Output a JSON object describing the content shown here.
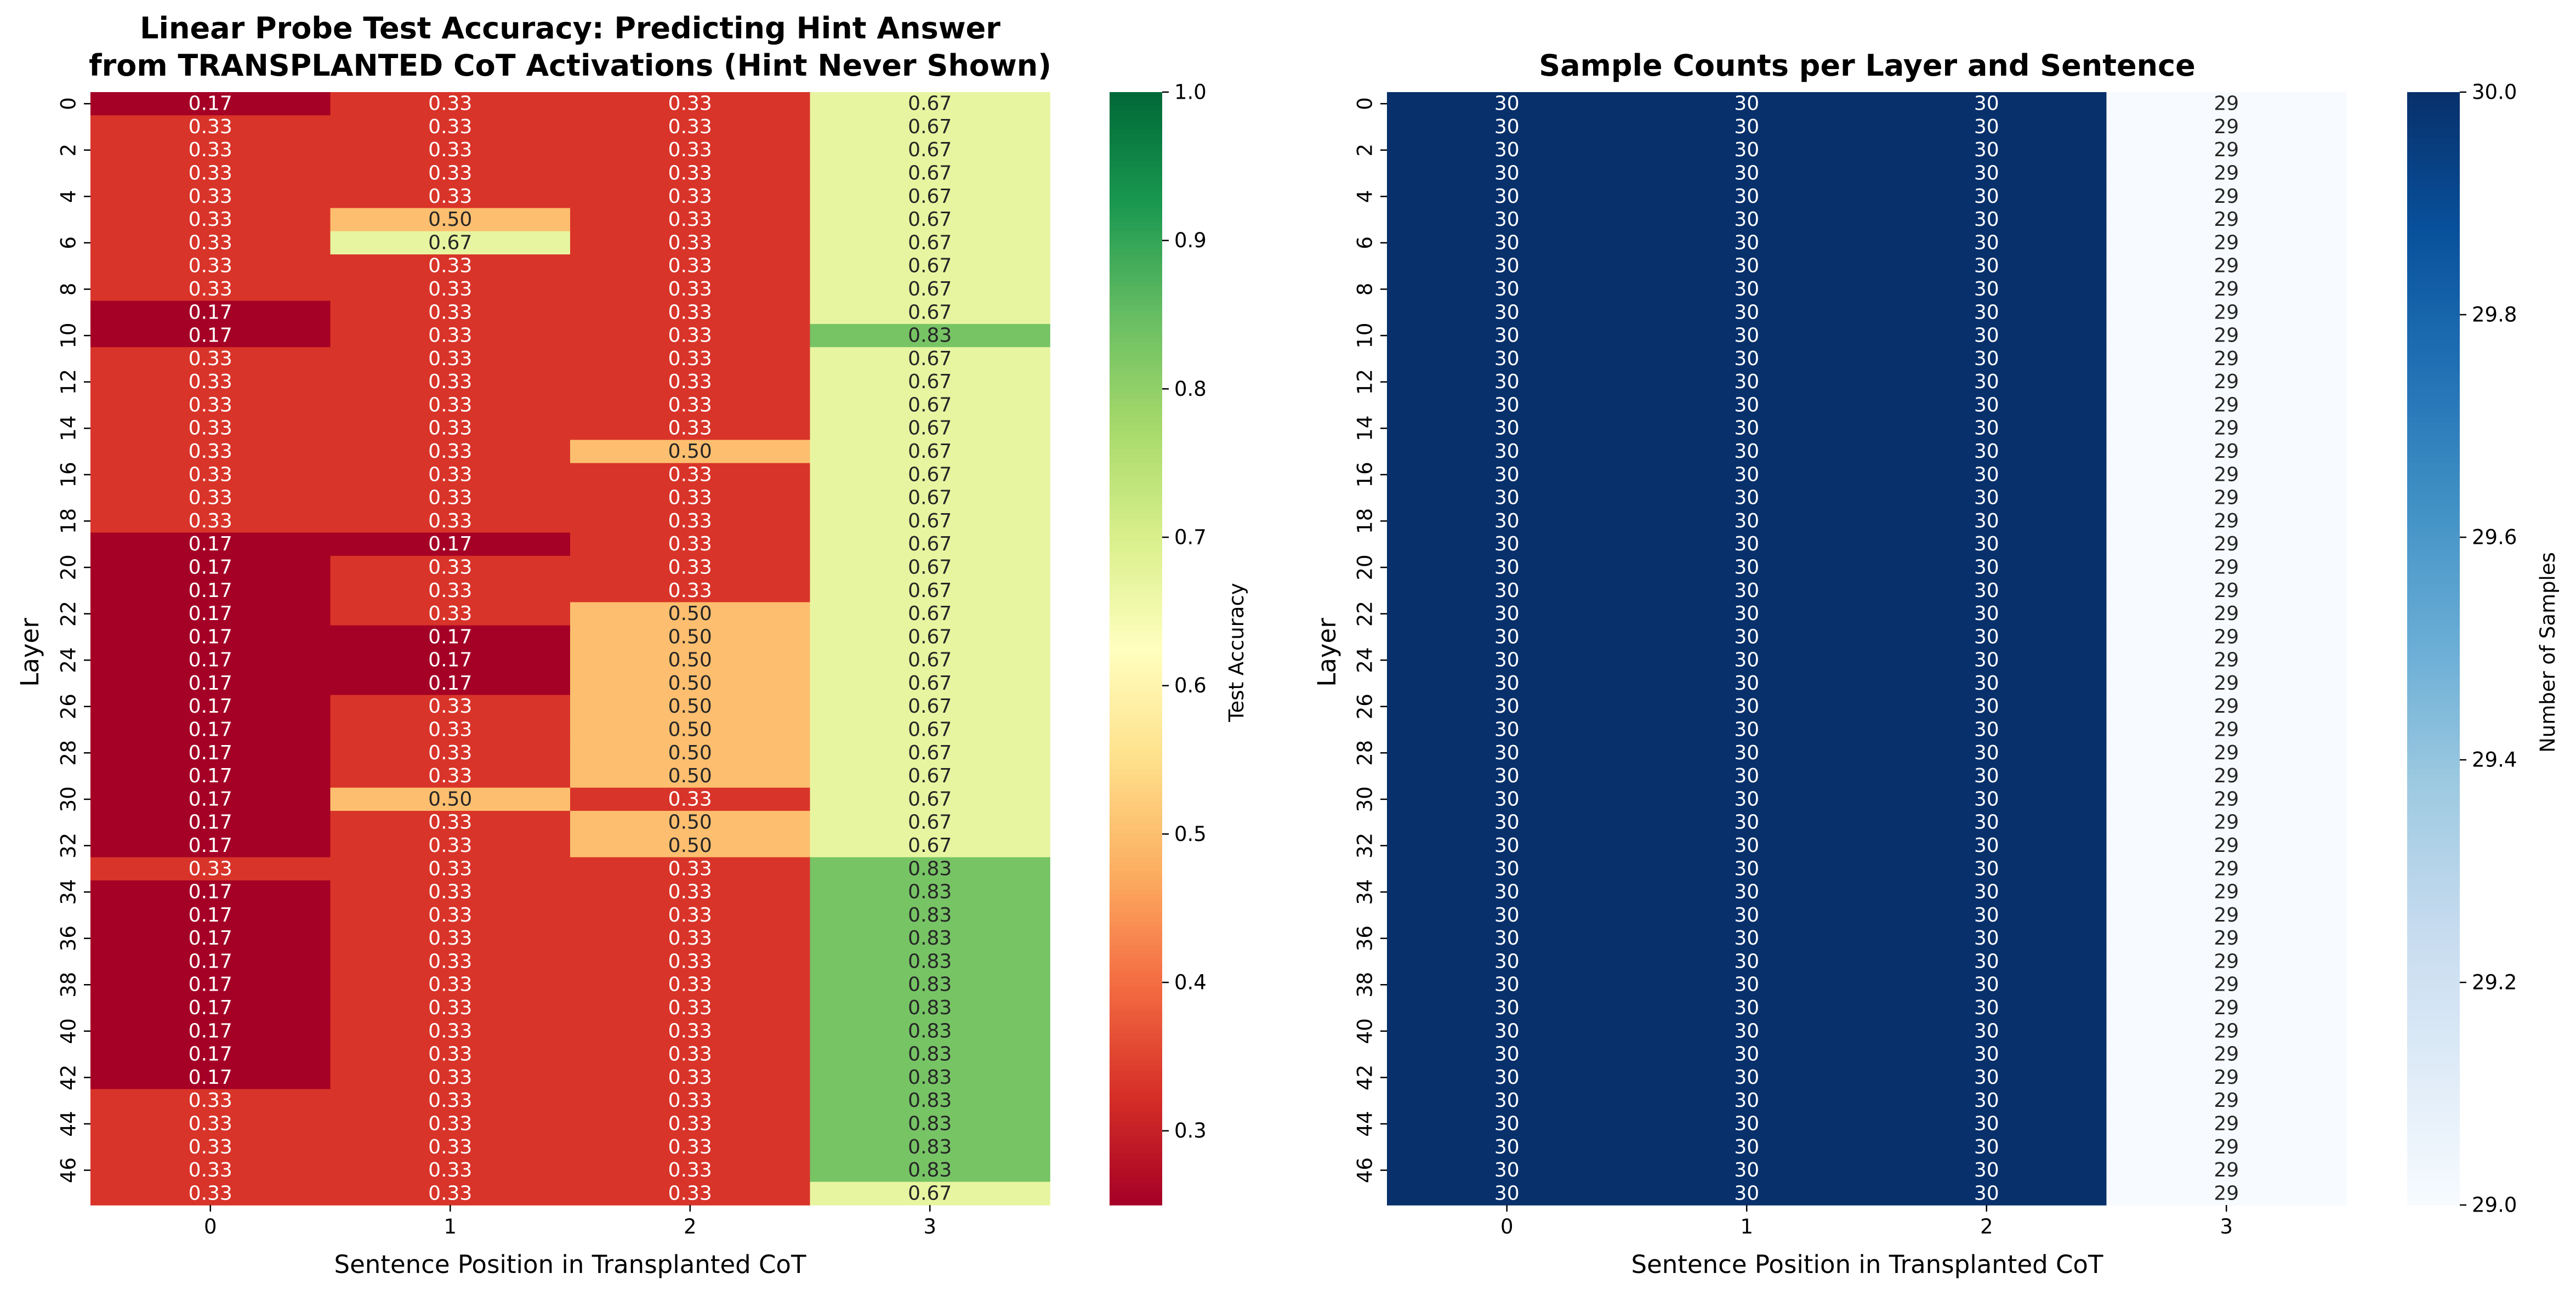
{
  "chart_data": [
    {
      "type": "heatmap",
      "title_lines": [
        "Linear Probe Test Accuracy: Predicting Hint Answer",
        "from TRANSPLANTED CoT Activations (Hint Never Shown)"
      ],
      "xlabel": "Sentence Position in Transplanted CoT",
      "ylabel": "Layer",
      "x_categories": [
        "0",
        "1",
        "2",
        "3"
      ],
      "y_categories": [
        "0",
        "1",
        "2",
        "3",
        "4",
        "5",
        "6",
        "7",
        "8",
        "9",
        "10",
        "11",
        "12",
        "13",
        "14",
        "15",
        "16",
        "17",
        "18",
        "19",
        "20",
        "21",
        "22",
        "23",
        "24",
        "25",
        "26",
        "27",
        "28",
        "29",
        "30",
        "31",
        "32",
        "33",
        "34",
        "35",
        "36",
        "37",
        "38",
        "39",
        "40",
        "41",
        "42",
        "43",
        "44",
        "45",
        "46",
        "47"
      ],
      "y_tick_labels": [
        "0",
        "2",
        "4",
        "6",
        "8",
        "10",
        "12",
        "14",
        "16",
        "18",
        "20",
        "22",
        "24",
        "26",
        "28",
        "30",
        "32",
        "34",
        "36",
        "38",
        "40",
        "42",
        "44",
        "46"
      ],
      "values": [
        [
          0.17,
          0.33,
          0.33,
          0.67
        ],
        [
          0.33,
          0.33,
          0.33,
          0.67
        ],
        [
          0.33,
          0.33,
          0.33,
          0.67
        ],
        [
          0.33,
          0.33,
          0.33,
          0.67
        ],
        [
          0.33,
          0.33,
          0.33,
          0.67
        ],
        [
          0.33,
          0.5,
          0.33,
          0.67
        ],
        [
          0.33,
          0.67,
          0.33,
          0.67
        ],
        [
          0.33,
          0.33,
          0.33,
          0.67
        ],
        [
          0.33,
          0.33,
          0.33,
          0.67
        ],
        [
          0.17,
          0.33,
          0.33,
          0.67
        ],
        [
          0.17,
          0.33,
          0.33,
          0.83
        ],
        [
          0.33,
          0.33,
          0.33,
          0.67
        ],
        [
          0.33,
          0.33,
          0.33,
          0.67
        ],
        [
          0.33,
          0.33,
          0.33,
          0.67
        ],
        [
          0.33,
          0.33,
          0.33,
          0.67
        ],
        [
          0.33,
          0.33,
          0.5,
          0.67
        ],
        [
          0.33,
          0.33,
          0.33,
          0.67
        ],
        [
          0.33,
          0.33,
          0.33,
          0.67
        ],
        [
          0.33,
          0.33,
          0.33,
          0.67
        ],
        [
          0.17,
          0.17,
          0.33,
          0.67
        ],
        [
          0.17,
          0.33,
          0.33,
          0.67
        ],
        [
          0.17,
          0.33,
          0.33,
          0.67
        ],
        [
          0.17,
          0.33,
          0.5,
          0.67
        ],
        [
          0.17,
          0.17,
          0.5,
          0.67
        ],
        [
          0.17,
          0.17,
          0.5,
          0.67
        ],
        [
          0.17,
          0.17,
          0.5,
          0.67
        ],
        [
          0.17,
          0.33,
          0.5,
          0.67
        ],
        [
          0.17,
          0.33,
          0.5,
          0.67
        ],
        [
          0.17,
          0.33,
          0.5,
          0.67
        ],
        [
          0.17,
          0.33,
          0.5,
          0.67
        ],
        [
          0.17,
          0.5,
          0.33,
          0.67
        ],
        [
          0.17,
          0.33,
          0.5,
          0.67
        ],
        [
          0.17,
          0.33,
          0.5,
          0.67
        ],
        [
          0.33,
          0.33,
          0.33,
          0.83
        ],
        [
          0.17,
          0.33,
          0.33,
          0.83
        ],
        [
          0.17,
          0.33,
          0.33,
          0.83
        ],
        [
          0.17,
          0.33,
          0.33,
          0.83
        ],
        [
          0.17,
          0.33,
          0.33,
          0.83
        ],
        [
          0.17,
          0.33,
          0.33,
          0.83
        ],
        [
          0.17,
          0.33,
          0.33,
          0.83
        ],
        [
          0.17,
          0.33,
          0.33,
          0.83
        ],
        [
          0.17,
          0.33,
          0.33,
          0.83
        ],
        [
          0.17,
          0.33,
          0.33,
          0.83
        ],
        [
          0.33,
          0.33,
          0.33,
          0.83
        ],
        [
          0.33,
          0.33,
          0.33,
          0.83
        ],
        [
          0.33,
          0.33,
          0.33,
          0.83
        ],
        [
          0.33,
          0.33,
          0.33,
          0.83
        ],
        [
          0.33,
          0.33,
          0.33,
          0.67
        ]
      ],
      "colormap": "RdYlGn",
      "vmin": 0.25,
      "vmax": 1.0,
      "colorbar": {
        "label": "Test Accuracy",
        "ticks": [
          0.3,
          0.4,
          0.5,
          0.6,
          0.7,
          0.8,
          0.9,
          1.0
        ],
        "tick_labels": [
          "0.3",
          "0.4",
          "0.5",
          "0.6",
          "0.7",
          "0.8",
          "0.9",
          "1.0"
        ]
      },
      "annotation_format": "2f"
    },
    {
      "type": "heatmap",
      "title_lines": [
        "Sample Counts per Layer and Sentence"
      ],
      "xlabel": "Sentence Position in Transplanted CoT",
      "ylabel": "Layer",
      "x_categories": [
        "0",
        "1",
        "2",
        "3"
      ],
      "y_categories": [
        "0",
        "1",
        "2",
        "3",
        "4",
        "5",
        "6",
        "7",
        "8",
        "9",
        "10",
        "11",
        "12",
        "13",
        "14",
        "15",
        "16",
        "17",
        "18",
        "19",
        "20",
        "21",
        "22",
        "23",
        "24",
        "25",
        "26",
        "27",
        "28",
        "29",
        "30",
        "31",
        "32",
        "33",
        "34",
        "35",
        "36",
        "37",
        "38",
        "39",
        "40",
        "41",
        "42",
        "43",
        "44",
        "45",
        "46",
        "47"
      ],
      "y_tick_labels": [
        "0",
        "2",
        "4",
        "6",
        "8",
        "10",
        "12",
        "14",
        "16",
        "18",
        "20",
        "22",
        "24",
        "26",
        "28",
        "30",
        "32",
        "34",
        "36",
        "38",
        "40",
        "42",
        "44",
        "46"
      ],
      "values": [
        [
          30,
          30,
          30,
          29
        ],
        [
          30,
          30,
          30,
          29
        ],
        [
          30,
          30,
          30,
          29
        ],
        [
          30,
          30,
          30,
          29
        ],
        [
          30,
          30,
          30,
          29
        ],
        [
          30,
          30,
          30,
          29
        ],
        [
          30,
          30,
          30,
          29
        ],
        [
          30,
          30,
          30,
          29
        ],
        [
          30,
          30,
          30,
          29
        ],
        [
          30,
          30,
          30,
          29
        ],
        [
          30,
          30,
          30,
          29
        ],
        [
          30,
          30,
          30,
          29
        ],
        [
          30,
          30,
          30,
          29
        ],
        [
          30,
          30,
          30,
          29
        ],
        [
          30,
          30,
          30,
          29
        ],
        [
          30,
          30,
          30,
          29
        ],
        [
          30,
          30,
          30,
          29
        ],
        [
          30,
          30,
          30,
          29
        ],
        [
          30,
          30,
          30,
          29
        ],
        [
          30,
          30,
          30,
          29
        ],
        [
          30,
          30,
          30,
          29
        ],
        [
          30,
          30,
          30,
          29
        ],
        [
          30,
          30,
          30,
          29
        ],
        [
          30,
          30,
          30,
          29
        ],
        [
          30,
          30,
          30,
          29
        ],
        [
          30,
          30,
          30,
          29
        ],
        [
          30,
          30,
          30,
          29
        ],
        [
          30,
          30,
          30,
          29
        ],
        [
          30,
          30,
          30,
          29
        ],
        [
          30,
          30,
          30,
          29
        ],
        [
          30,
          30,
          30,
          29
        ],
        [
          30,
          30,
          30,
          29
        ],
        [
          30,
          30,
          30,
          29
        ],
        [
          30,
          30,
          30,
          29
        ],
        [
          30,
          30,
          30,
          29
        ],
        [
          30,
          30,
          30,
          29
        ],
        [
          30,
          30,
          30,
          29
        ],
        [
          30,
          30,
          30,
          29
        ],
        [
          30,
          30,
          30,
          29
        ],
        [
          30,
          30,
          30,
          29
        ],
        [
          30,
          30,
          30,
          29
        ],
        [
          30,
          30,
          30,
          29
        ],
        [
          30,
          30,
          30,
          29
        ],
        [
          30,
          30,
          30,
          29
        ],
        [
          30,
          30,
          30,
          29
        ],
        [
          30,
          30,
          30,
          29
        ],
        [
          30,
          30,
          30,
          29
        ],
        [
          30,
          30,
          30,
          29
        ]
      ],
      "colormap": "Blues",
      "vmin": 29.0,
      "vmax": 30.0,
      "colorbar": {
        "label": "Number of Samples",
        "ticks": [
          29.0,
          29.2,
          29.4,
          29.6,
          29.8,
          30.0
        ],
        "tick_labels": [
          "29.0",
          "29.2",
          "29.4",
          "29.6",
          "29.8",
          "30.0"
        ]
      },
      "annotation_format": "d"
    }
  ]
}
